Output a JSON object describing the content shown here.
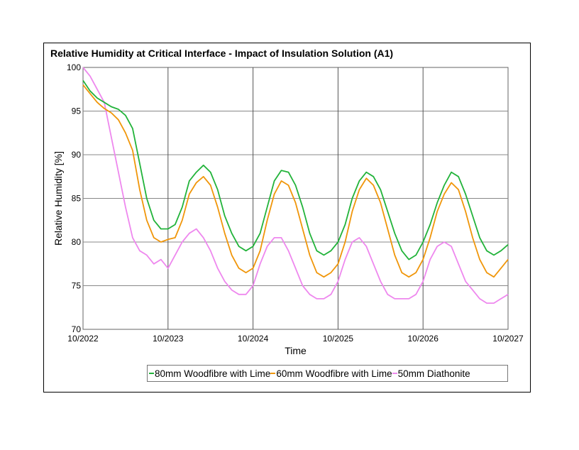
{
  "chart_data": {
    "type": "line",
    "title": "Relative Humidity at Critical Interface - Impact of Insulation Solution (A1)",
    "xlabel": "Time",
    "ylabel": "Relative Humidity [%]",
    "ylim": [
      70,
      100
    ],
    "yticks": [
      70,
      75,
      80,
      85,
      90,
      95,
      100
    ],
    "xticks": [
      "10/2022",
      "10/2023",
      "10/2024",
      "10/2025",
      "10/2026",
      "10/2027"
    ],
    "grid": true,
    "legend": "bottom",
    "x_start": "10/2022",
    "x_step": "1 month",
    "series": [
      {
        "name": "80mm Woodfibre with Lime",
        "color": "#22b33a",
        "values": [
          98.5,
          97.3,
          96.5,
          96,
          95.5,
          95.2,
          94.5,
          93,
          89,
          85,
          82.5,
          81.5,
          81.5,
          82,
          84,
          87,
          88,
          88.8,
          88,
          86,
          83,
          81,
          79.5,
          79,
          79.5,
          81,
          84,
          87,
          88.2,
          88,
          86.5,
          84,
          81,
          79,
          78.5,
          79,
          80,
          82,
          85,
          87,
          88,
          87.5,
          86,
          83.5,
          81,
          79,
          78,
          78.5,
          80,
          82,
          84.5,
          86.5,
          88,
          87.5,
          85.5,
          83,
          80.5,
          79,
          78.5,
          79,
          79.7
        ]
      },
      {
        "name": "60mm Woodfibre with Lime",
        "color": "#f0960a",
        "values": [
          98,
          97,
          96,
          95.3,
          94.8,
          94,
          92.5,
          90.5,
          86,
          82.5,
          80.5,
          80,
          80.3,
          80.5,
          82.5,
          85.5,
          86.8,
          87.5,
          86.5,
          84,
          81,
          78.5,
          77,
          76.5,
          77,
          79,
          82.5,
          85.5,
          87,
          86.5,
          84.5,
          81.5,
          78.5,
          76.5,
          76,
          76.5,
          77.5,
          80,
          83.5,
          86,
          87.3,
          86.5,
          84.5,
          81.5,
          78.5,
          76.5,
          76,
          76.5,
          78,
          80.5,
          83.5,
          85.5,
          86.8,
          86,
          83.5,
          80.5,
          78,
          76.5,
          76,
          77,
          78
        ]
      },
      {
        "name": "50mm Diathonite",
        "color": "#ee88ee",
        "values": [
          100,
          99,
          97.5,
          96,
          92,
          88,
          84,
          80.5,
          79,
          78.5,
          77.5,
          78,
          77,
          78.5,
          80,
          81,
          81.5,
          80.5,
          79,
          77,
          75.5,
          74.5,
          74,
          74,
          75,
          77.5,
          79.5,
          80.5,
          80.5,
          79,
          77,
          75,
          74,
          73.5,
          73.5,
          74,
          75.5,
          78,
          80,
          80.5,
          79.5,
          77.5,
          75.5,
          74,
          73.5,
          73.5,
          73.5,
          74,
          75.5,
          78,
          79.5,
          80,
          79.5,
          77.5,
          75.5,
          74.5,
          73.5,
          73,
          73,
          73.5,
          74
        ]
      }
    ]
  }
}
